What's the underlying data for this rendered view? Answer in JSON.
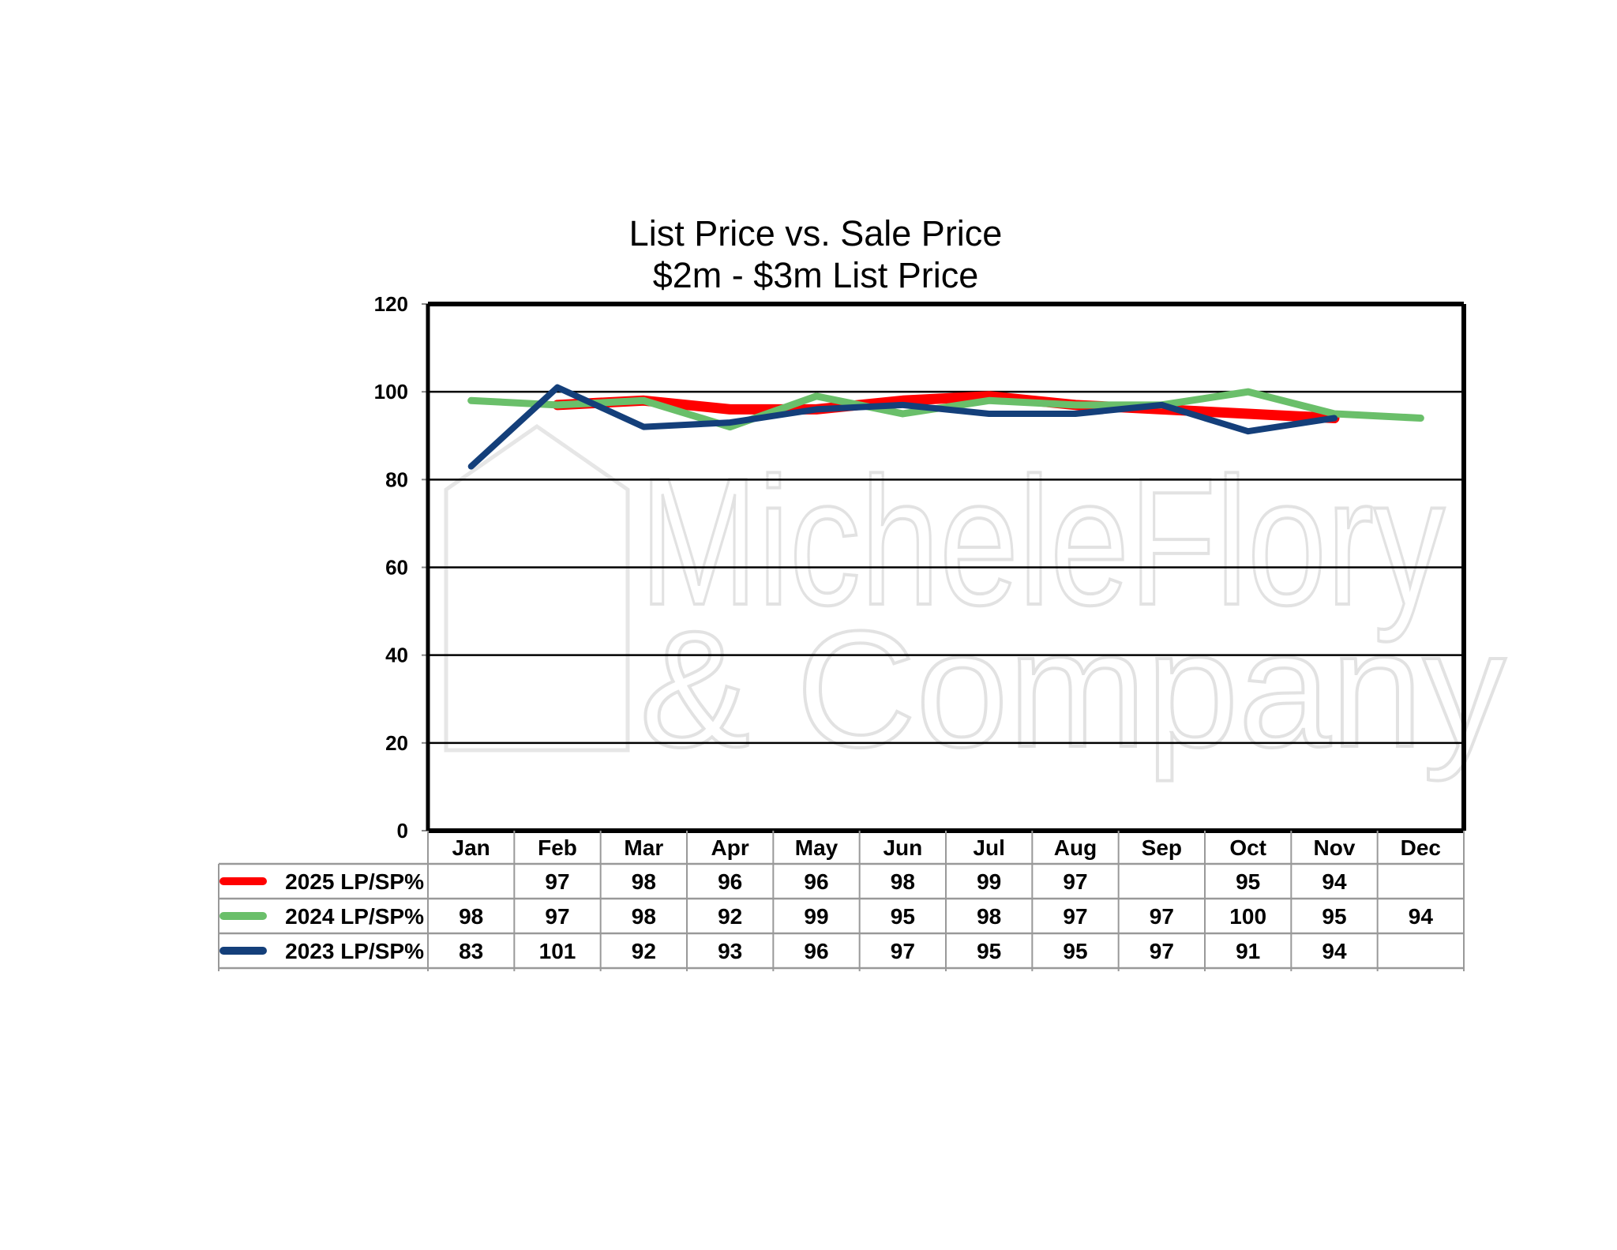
{
  "chart_data": {
    "type": "line",
    "title": "List Price vs. Sale Price",
    "subtitle": "$2m - $3m List Price",
    "xlabel": "",
    "ylabel": "",
    "ylim": [
      0,
      120
    ],
    "yticks": [
      0,
      20,
      40,
      60,
      80,
      100,
      120
    ],
    "grid": true,
    "legend_placement": "data-table-below",
    "categories": [
      "Jan",
      "Feb",
      "Mar",
      "Apr",
      "May",
      "Jun",
      "Jul",
      "Aug",
      "Sep",
      "Oct",
      "Nov",
      "Dec"
    ],
    "series": [
      {
        "name": "2025 LP/SP%",
        "color": "#ff0000",
        "values": [
          null,
          97,
          98,
          96,
          96,
          98,
          99,
          97,
          null,
          95,
          94,
          null
        ]
      },
      {
        "name": "2024 LP/SP%",
        "color": "#6abf6a",
        "values": [
          98,
          97,
          98,
          92,
          99,
          95,
          98,
          97,
          97,
          100,
          95,
          94
        ]
      },
      {
        "name": "2023 LP/SP%",
        "color": "#143f7a",
        "values": [
          83,
          101,
          92,
          93,
          96,
          97,
          95,
          95,
          97,
          91,
          94,
          null
        ]
      }
    ],
    "watermark": "MicheleFlory & Company"
  }
}
